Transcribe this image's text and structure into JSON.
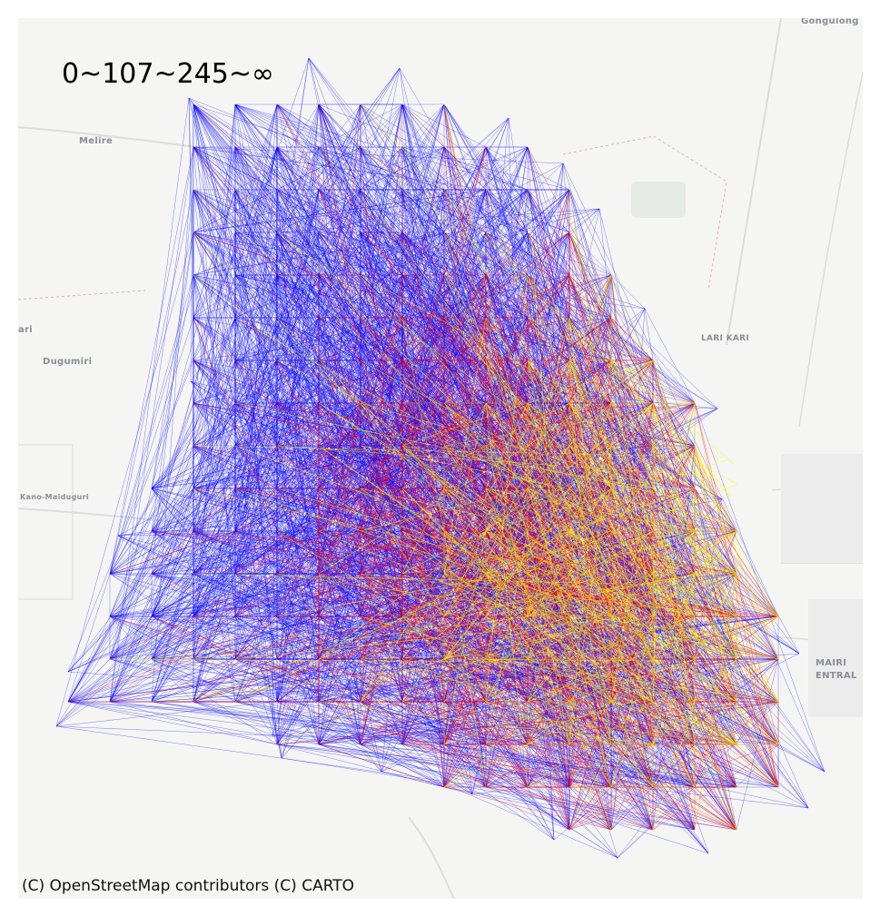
{
  "legend": {
    "breaks": "0~107~245~∞",
    "colors": [
      "#0000ff",
      "#ff0000",
      "#ffff00"
    ]
  },
  "attribution": "(C) OpenStreetMap contributors (C) CARTO",
  "basemap": {
    "background": "#f5f5f3",
    "places": [
      {
        "id": "gongulong",
        "label": "Gongulong"
      },
      {
        "id": "melire",
        "label": "Melire"
      },
      {
        "id": "dugumiri",
        "label": "Dugumiri"
      },
      {
        "id": "ari",
        "label": "ari"
      },
      {
        "id": "lari-kari",
        "label": "LARI KARI"
      },
      {
        "id": "kano-maiduguri",
        "label": "Kano-Maiduguri"
      },
      {
        "id": "mairi-central-1",
        "label": "MAIRI"
      },
      {
        "id": "mairi-central-2",
        "label": "ENTRAL"
      }
    ]
  },
  "flow_map": {
    "type": "od-flow-lines",
    "line_colors": {
      "low": "#0000ff",
      "mid": "#ff0000",
      "high": "#ffff00"
    }
  }
}
